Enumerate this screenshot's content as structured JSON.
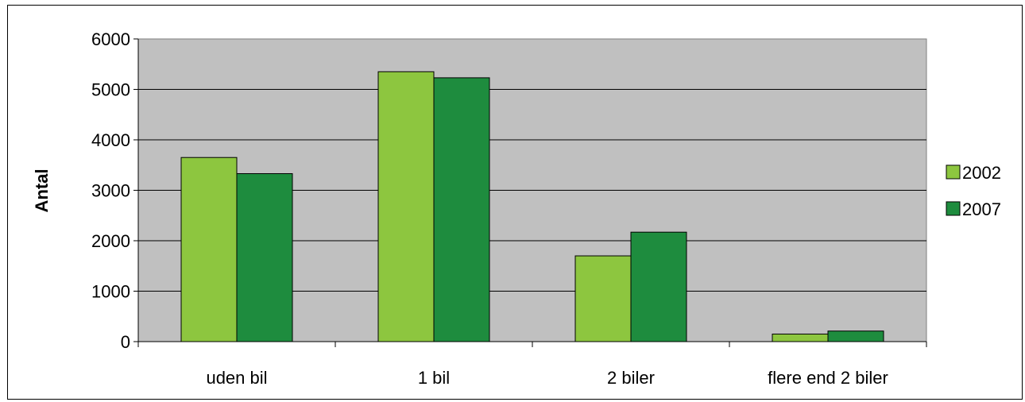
{
  "chart_data": {
    "type": "bar",
    "title": "",
    "xlabel": "",
    "ylabel": "Antal",
    "categories": [
      "uden bil",
      "1 bil",
      "2 biler",
      "flere end 2 biler"
    ],
    "series": [
      {
        "name": "2002",
        "color": "#8DC63F",
        "values": [
          3650,
          5350,
          1700,
          150
        ]
      },
      {
        "name": "2007",
        "color": "#1E8C3E",
        "values": [
          3330,
          5230,
          2170,
          210
        ]
      }
    ],
    "ylim": [
      0,
      6000
    ],
    "yticks": [
      0,
      1000,
      2000,
      3000,
      4000,
      5000,
      6000
    ],
    "grid": true,
    "plot_background": "#C0C0C0",
    "legend_position": "right"
  }
}
